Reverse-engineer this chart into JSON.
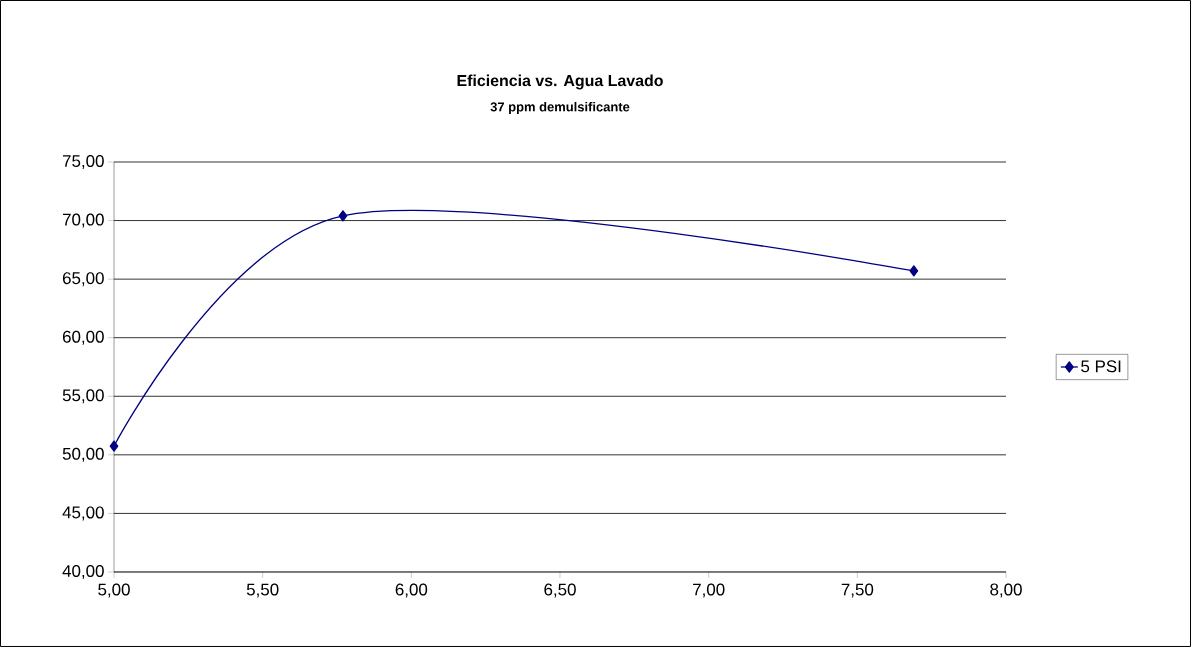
{
  "chart_data": {
    "type": "line",
    "title": "Eficiencia vs. Agua Lavado",
    "subtitle": "37 ppm demulsificante",
    "x": [
      5.0,
      5.77,
      7.69
    ],
    "series": [
      {
        "name": "5 PSI",
        "color": "#000080",
        "values": [
          50.75,
          70.4,
          65.7
        ]
      }
    ],
    "xlim": [
      5,
      8
    ],
    "ylim": [
      40,
      75
    ],
    "xticks": [
      {
        "value": 5,
        "label": "5,00"
      },
      {
        "value": 5.5,
        "label": "5,50"
      },
      {
        "value": 6,
        "label": "6,00"
      },
      {
        "value": 6.5,
        "label": "6,50"
      },
      {
        "value": 7,
        "label": "7,00"
      },
      {
        "value": 7.5,
        "label": "7,50"
      },
      {
        "value": 8,
        "label": "8,00"
      }
    ],
    "yticks": [
      {
        "value": 40,
        "label": "40,00"
      },
      {
        "value": 45,
        "label": "45,00"
      },
      {
        "value": 50,
        "label": "50,00"
      },
      {
        "value": 55,
        "label": "55,00"
      },
      {
        "value": 60,
        "label": "60,00"
      },
      {
        "value": 65,
        "label": "65,00"
      },
      {
        "value": 70,
        "label": "70,00"
      },
      {
        "value": 75,
        "label": "75,00"
      }
    ],
    "grid": "y",
    "legend": "right",
    "marker": "diamond",
    "line_style": "solid"
  }
}
